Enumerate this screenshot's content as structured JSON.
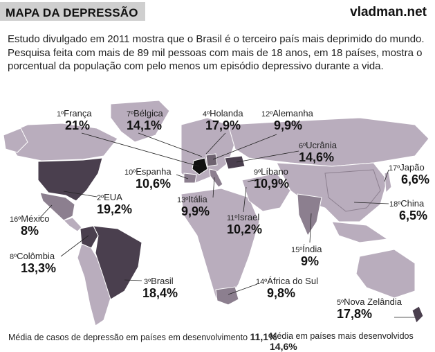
{
  "header": {
    "title": "MAPA DA DEPRESSÃO",
    "watermark": "vladman.net"
  },
  "intro": "Estudo divulgado em 2011 mostra que o Brasil é o terceiro país mais deprimido do mundo. Pesquisa feita com mais de 89 mil pessoas com mais de 18 anos, em 18 países, mostra o porcentual da população com pelo menos um episódio depressivo durante a vida.",
  "footer": {
    "developing_label": "Média de casos de depressão em países em desenvolvimento",
    "developing_value": "11,1%",
    "developed_label": "Média em países mais desenvolvidos",
    "developed_value": "14,6%"
  },
  "colors": {
    "land": "#b9adbd",
    "highlight": "#4a3f4e",
    "medium": "#8c7f8f",
    "border": "#ffffff",
    "ocean": "#ffffff"
  },
  "chart_data": {
    "type": "map",
    "unit": "%",
    "countries": [
      {
        "rank": 1,
        "rank_label": "1º",
        "name": "França",
        "value": 21.0,
        "label": "21%"
      },
      {
        "rank": 2,
        "rank_label": "2º",
        "name": "EUA",
        "value": 19.2,
        "label": "19,2%"
      },
      {
        "rank": 3,
        "rank_label": "3º",
        "name": "Brasil",
        "value": 18.4,
        "label": "18,4%"
      },
      {
        "rank": 4,
        "rank_label": "4º",
        "name": "Holanda",
        "value": 17.9,
        "label": "17,9%"
      },
      {
        "rank": 5,
        "rank_label": "5º",
        "name": "Nova Zelândia",
        "value": 17.8,
        "label": "17,8%"
      },
      {
        "rank": 6,
        "rank_label": "6º",
        "name": "Ucrânia",
        "value": 14.6,
        "label": "14,6%"
      },
      {
        "rank": 7,
        "rank_label": "7º",
        "name": "Bélgica",
        "value": 14.1,
        "label": "14,1%"
      },
      {
        "rank": 8,
        "rank_label": "8º",
        "name": "Colômbia",
        "value": 13.3,
        "label": "13,3%"
      },
      {
        "rank": 9,
        "rank_label": "9º",
        "name": "Líbano",
        "value": 10.9,
        "label": "10,9%"
      },
      {
        "rank": 10,
        "rank_label": "10º",
        "name": "Espanha",
        "value": 10.6,
        "label": "10,6%"
      },
      {
        "rank": 11,
        "rank_label": "11º",
        "name": "Israel",
        "value": 10.2,
        "label": "10,2%"
      },
      {
        "rank": 12,
        "rank_label": "12º",
        "name": "Alemanha",
        "value": 9.9,
        "label": "9,9%"
      },
      {
        "rank": 13,
        "rank_label": "13º",
        "name": "Itália",
        "value": 9.9,
        "label": "9,9%"
      },
      {
        "rank": 14,
        "rank_label": "14º",
        "name": "África do Sul",
        "value": 9.8,
        "label": "9,8%"
      },
      {
        "rank": 15,
        "rank_label": "15º",
        "name": "Índia",
        "value": 9.0,
        "label": "9%"
      },
      {
        "rank": 16,
        "rank_label": "16º",
        "name": "México",
        "value": 8.0,
        "label": "8%"
      },
      {
        "rank": 17,
        "rank_label": "17º",
        "name": "Japão",
        "value": 6.6,
        "label": "6,6%"
      },
      {
        "rank": 18,
        "rank_label": "18º",
        "name": "China",
        "value": 6.5,
        "label": "6,5%"
      }
    ]
  }
}
